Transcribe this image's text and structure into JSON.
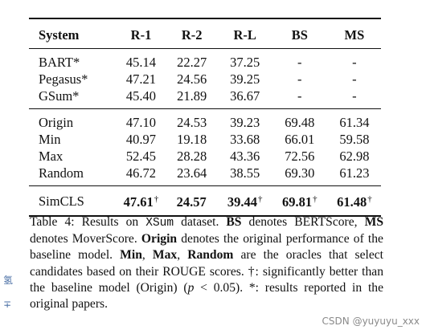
{
  "table": {
    "headers": [
      "System",
      "R-1",
      "R-2",
      "R-L",
      "BS",
      "MS"
    ],
    "groups": [
      [
        [
          "BART*",
          "45.14",
          "22.27",
          "37.25",
          "-",
          "-"
        ],
        [
          "Pegasus*",
          "47.21",
          "24.56",
          "39.25",
          "-",
          "-"
        ],
        [
          "GSum*",
          "45.40",
          "21.89",
          "36.67",
          "-",
          "-"
        ]
      ],
      [
        [
          "Origin",
          "47.10",
          "24.53",
          "39.23",
          "69.48",
          "61.34"
        ],
        [
          "Min",
          "40.97",
          "19.18",
          "33.68",
          "66.01",
          "59.58"
        ],
        [
          "Max",
          "52.45",
          "28.28",
          "43.36",
          "72.56",
          "62.98"
        ],
        [
          "Random",
          "46.72",
          "23.64",
          "38.55",
          "69.30",
          "61.23"
        ]
      ]
    ],
    "final_row": {
      "system": "SimCLS",
      "values": [
        "47.61",
        "24.57",
        "39.44",
        "69.81",
        "61.48"
      ],
      "dagger": [
        true,
        false,
        true,
        true,
        true
      ],
      "dagger_symbol": "†"
    }
  },
  "caption": {
    "t01": "Table 4:  Results on ",
    "t02": "XSum",
    "t03": " dataset. ",
    "t04": "BS",
    "t05": " denotes BERTScore, ",
    "t06": "MS",
    "t07": " denotes MoverScore. ",
    "t08": "Origin",
    "t09": " denotes the original performance of the baseline model. ",
    "t10": "Min",
    "t11": ", ",
    "t12": "Max",
    "t13": ", ",
    "t14": "Random",
    "t15": " are the oracles that select candidates based on their ROUGE scores. †: significantly better than the baseline model (Origin) (",
    "t16": "p",
    "t17": " < 0.05). *: results reported in the original papers."
  },
  "side_glyphs": [
    "氢",
    "∓"
  ],
  "watermark": "CSDN @yuyuyu_xxx"
}
